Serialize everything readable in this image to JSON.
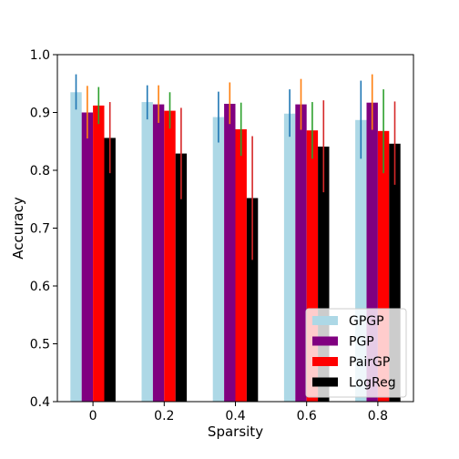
{
  "chart_data": {
    "type": "bar",
    "title": "",
    "xlabel": "Sparsity",
    "ylabel": "Accuracy",
    "categories": [
      "0",
      "0.2",
      "0.4",
      "0.6",
      "0.8"
    ],
    "ylim": [
      0.4,
      1.0
    ],
    "yticks": [
      "0.4",
      "0.5",
      "0.6",
      "0.7",
      "0.8",
      "0.9",
      "1.0"
    ],
    "legend_position": "lower-right",
    "series": [
      {
        "name": "GPGP",
        "color": "#add8e6",
        "err_color": "#1f77b4",
        "values": [
          0.935,
          0.918,
          0.892,
          0.898,
          0.887
        ],
        "err_low": [
          0.905,
          0.888,
          0.848,
          0.858,
          0.82
        ],
        "err_high": [
          0.966,
          0.947,
          0.936,
          0.94,
          0.955
        ]
      },
      {
        "name": "PGP",
        "color": "#800080",
        "err_color": "#ff7f0e",
        "values": [
          0.9,
          0.914,
          0.915,
          0.914,
          0.917
        ],
        "err_low": [
          0.855,
          0.882,
          0.88,
          0.87,
          0.87
        ],
        "err_high": [
          0.946,
          0.947,
          0.952,
          0.958,
          0.966
        ]
      },
      {
        "name": "PairGP",
        "color": "#ff0000",
        "err_color": "#2ca02c",
        "values": [
          0.912,
          0.903,
          0.871,
          0.869,
          0.868
        ],
        "err_low": [
          0.88,
          0.872,
          0.825,
          0.82,
          0.795
        ],
        "err_high": [
          0.944,
          0.935,
          0.917,
          0.918,
          0.94
        ]
      },
      {
        "name": "LogReg",
        "color": "#000000",
        "err_color": "#d62728",
        "values": [
          0.856,
          0.829,
          0.752,
          0.841,
          0.846
        ],
        "err_low": [
          0.795,
          0.75,
          0.645,
          0.762,
          0.775
        ],
        "err_high": [
          0.918,
          0.908,
          0.859,
          0.921,
          0.919
        ]
      }
    ]
  }
}
